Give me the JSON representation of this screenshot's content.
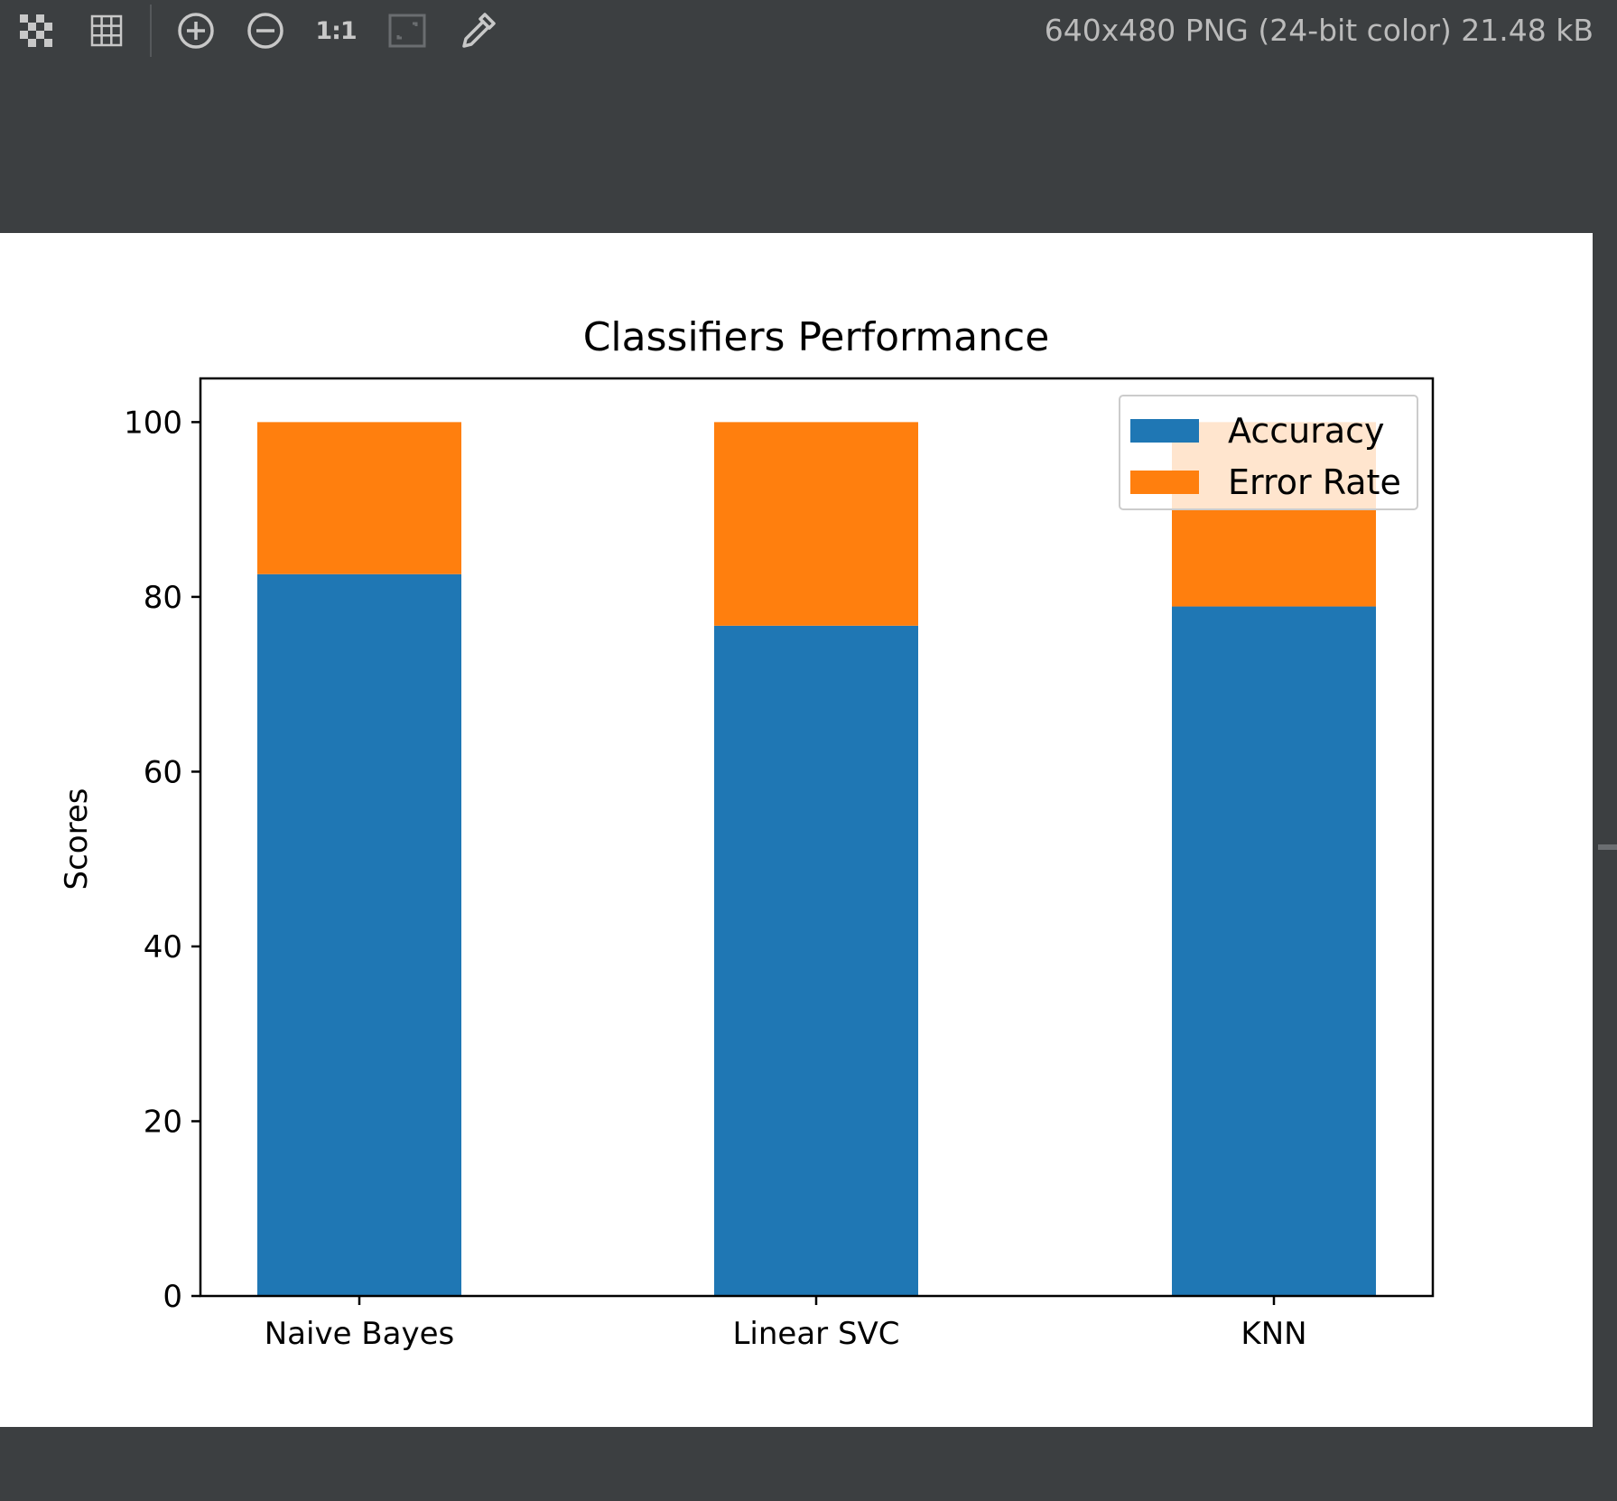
{
  "toolbar": {
    "buttons": [
      {
        "name": "chessboard-icon",
        "label": "chessboard-background"
      },
      {
        "name": "grid-icon",
        "label": "show-grid"
      },
      {
        "name": "zoom-in-icon",
        "label": "zoom-in"
      },
      {
        "name": "zoom-out-icon",
        "label": "zoom-out"
      },
      {
        "name": "actual-size-icon",
        "label": "1:1"
      },
      {
        "name": "fit-to-window-icon",
        "label": "fit"
      },
      {
        "name": "color-picker-icon",
        "label": "color-picker"
      }
    ],
    "actual_size_label": "1:1",
    "image_info": "640x480 PNG (24-bit color) 21.48 kB"
  },
  "colors": {
    "background": "#3c3f41",
    "accuracy": "#1f77b4",
    "error_rate": "#ff7f0e"
  },
  "chart_data": {
    "type": "bar",
    "stacked": true,
    "title": "Classifiers Performance",
    "xlabel": "",
    "ylabel": "Scores",
    "categories": [
      "Naive Bayes",
      "Linear SVC",
      "KNN"
    ],
    "series": [
      {
        "name": "Accuracy",
        "values": [
          82.6,
          76.7,
          78.9
        ]
      },
      {
        "name": "Error Rate",
        "values": [
          17.4,
          23.3,
          21.1
        ]
      }
    ],
    "ylim": [
      0,
      105
    ],
    "yticks": [
      0,
      20,
      40,
      60,
      80,
      100
    ],
    "legend": "upper right",
    "grid": false
  }
}
